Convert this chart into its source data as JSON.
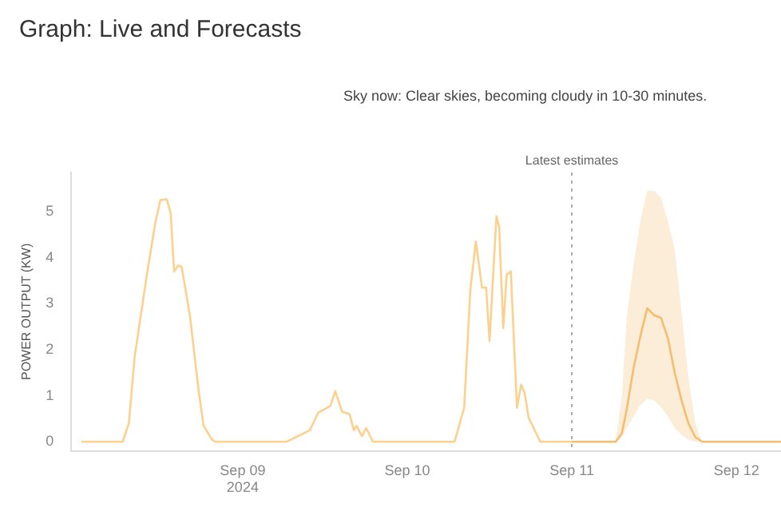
{
  "chart_data": {
    "type": "line",
    "title": "Graph: Live and Forecasts",
    "ylabel": "POWER OUTPUT (KW)",
    "annotations": [
      "Sky now: Clear skies, becoming cloudy in 10-30 minutes."
    ],
    "xlim": [
      "2024-09-07T23:00",
      "2024-09-12T06:30"
    ],
    "xticks": [
      {
        "value": "2024-09-09",
        "label": "Sep 09\n2024"
      },
      {
        "value": "2024-09-10",
        "label": "Sep 10"
      },
      {
        "value": "2024-09-11",
        "label": "Sep 11"
      },
      {
        "value": "2024-09-12",
        "label": "Sep 12"
      }
    ],
    "ylim": [
      -0.2,
      5.85
    ],
    "yticks": [
      0,
      1,
      2,
      3,
      4,
      5
    ],
    "grid": false,
    "legend": false,
    "marker": "none",
    "line_style": "solid",
    "ref_lines": [
      {
        "axis": "x",
        "value": "2024-09-11",
        "label": "Latest estimates",
        "color": "#aaaaaa",
        "line_style": "dotted"
      }
    ],
    "series": [
      {
        "color": "#fdd08e",
        "x": [
          "2024-09-08T00:30",
          "2024-09-08T06:30",
          "2024-09-08T07:24",
          "2024-09-08T08:15",
          "2024-09-08T10:00",
          "2024-09-08T11:15",
          "2024-09-08T12:00",
          "2024-09-08T12:55",
          "2024-09-08T13:30",
          "2024-09-08T14:00",
          "2024-09-08T14:36",
          "2024-09-08T15:06",
          "2024-09-08T16:18",
          "2024-09-08T17:36",
          "2024-09-08T18:18",
          "2024-09-08T19:30",
          "2024-09-08T20:00",
          "2024-09-09T06:24",
          "2024-09-09T09:48",
          "2024-09-09T11:00",
          "2024-09-09T12:48",
          "2024-09-09T13:30",
          "2024-09-09T14:30",
          "2024-09-09T15:36",
          "2024-09-09T16:12",
          "2024-09-09T16:36",
          "2024-09-09T17:24",
          "2024-09-09T18:00",
          "2024-09-09T19:00",
          "2024-09-10T06:54",
          "2024-09-10T08:18",
          "2024-09-10T09:12",
          "2024-09-10T10:00",
          "2024-09-10T10:54",
          "2024-09-10T11:30",
          "2024-09-10T12:00",
          "2024-09-10T13:00",
          "2024-09-10T13:24",
          "2024-09-10T14:00",
          "2024-09-10T14:30",
          "2024-09-10T15:06",
          "2024-09-10T16:00",
          "2024-09-10T16:36",
          "2024-09-10T17:06",
          "2024-09-10T17:42",
          "2024-09-10T19:24",
          "2024-09-11T00:00"
        ],
        "values": [
          0,
          0,
          0.4,
          1.85,
          3.6,
          4.75,
          5.25,
          5.27,
          4.97,
          3.7,
          3.83,
          3.8,
          2.75,
          1.08,
          0.35,
          0.05,
          0,
          0,
          0.25,
          0.63,
          0.78,
          1.1,
          0.65,
          0.6,
          0.25,
          0.35,
          0.12,
          0.3,
          0,
          0,
          0.74,
          3.3,
          4.35,
          3.35,
          3.35,
          2.19,
          4.9,
          4.67,
          2.47,
          3.63,
          3.7,
          0.74,
          1.24,
          1.07,
          0.52,
          0,
          0
        ]
      },
      {
        "color": "#f5bd6e",
        "x": [
          "2024-09-11T00:00",
          "2024-09-11T06:24",
          "2024-09-11T07:18",
          "2024-09-11T08:00",
          "2024-09-11T09:00",
          "2024-09-11T10:00",
          "2024-09-11T11:00",
          "2024-09-11T12:00",
          "2024-09-11T13:00",
          "2024-09-11T14:00",
          "2024-09-11T15:00",
          "2024-09-11T16:00",
          "2024-09-11T17:00",
          "2024-09-11T18:00",
          "2024-09-11T19:00",
          "2024-09-12T06:30"
        ],
        "values": [
          0,
          0,
          0.19,
          0.7,
          1.6,
          2.3,
          2.9,
          2.75,
          2.69,
          2.25,
          1.5,
          0.9,
          0.4,
          0.1,
          0,
          0
        ],
        "upper": [
          0,
          0,
          1.0,
          2.7,
          3.85,
          4.8,
          5.45,
          5.45,
          5.3,
          4.8,
          4.2,
          2.8,
          1.4,
          0.4,
          0,
          0
        ],
        "lower": [
          0,
          0,
          0.1,
          0.3,
          0.55,
          0.8,
          0.93,
          0.9,
          0.75,
          0.55,
          0.3,
          0.15,
          0.05,
          0,
          0,
          0
        ]
      }
    ]
  }
}
